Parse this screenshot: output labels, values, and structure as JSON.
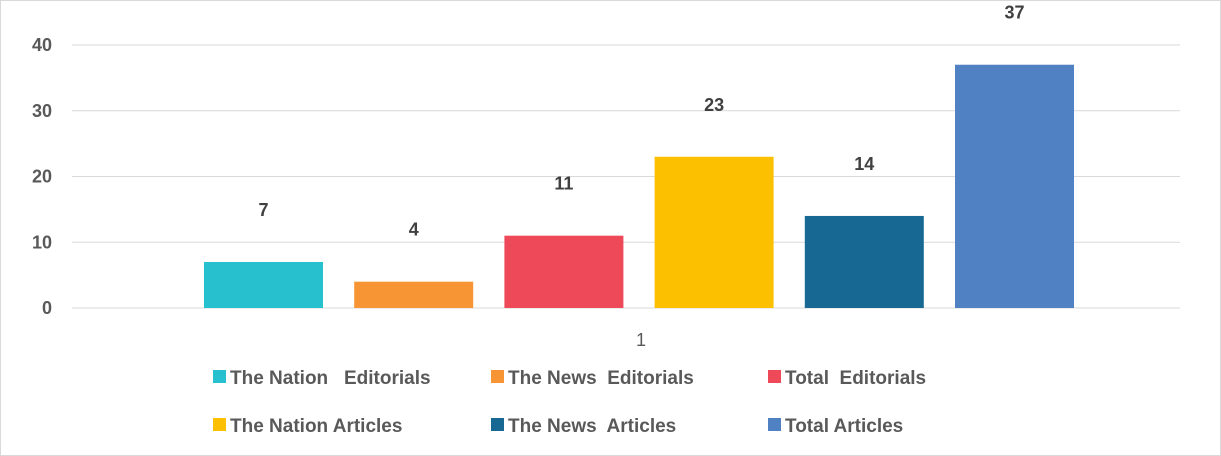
{
  "chart_data": {
    "type": "bar",
    "categories": [
      "1"
    ],
    "ylim": [
      0,
      40
    ],
    "yticks": [
      0,
      10,
      20,
      30,
      40
    ],
    "grid": true,
    "legend_position": "bottom",
    "series": [
      {
        "name": "The Nation   Editorials",
        "values": [
          7
        ],
        "color": "#26c0cf"
      },
      {
        "name": "The News  Editorials",
        "values": [
          4
        ],
        "color": "#f79433"
      },
      {
        "name": "Total  Editorials",
        "values": [
          11
        ],
        "color": "#ee4958"
      },
      {
        "name": "The Nation Articles",
        "values": [
          23
        ],
        "color": "#fdc000"
      },
      {
        "name": "The News  Articles",
        "values": [
          14
        ],
        "color": "#186894"
      },
      {
        "name": "Total Articles",
        "values": [
          37
        ],
        "color": "#4f81c3"
      }
    ]
  }
}
